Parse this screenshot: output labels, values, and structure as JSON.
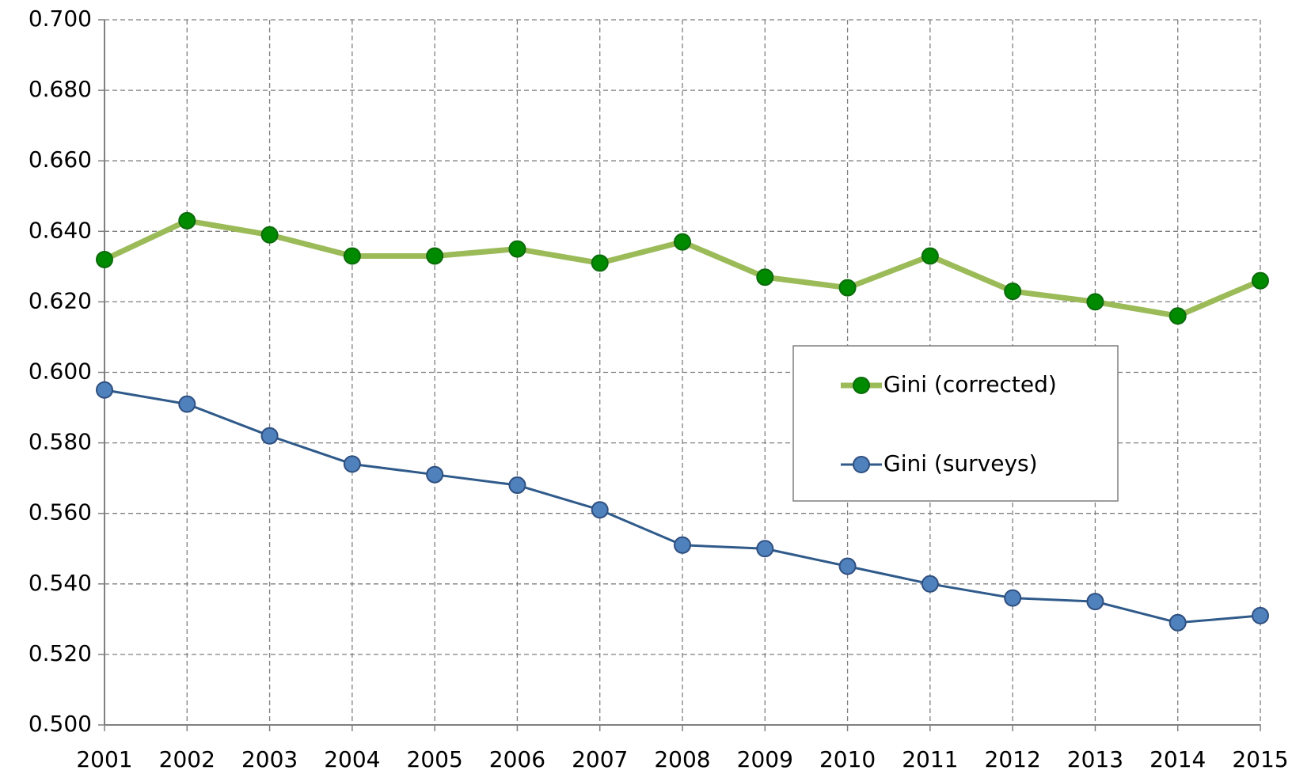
{
  "chart_data": {
    "type": "line",
    "x": [
      2001,
      2002,
      2003,
      2004,
      2005,
      2006,
      2007,
      2008,
      2009,
      2010,
      2011,
      2012,
      2013,
      2014,
      2015
    ],
    "xlim": [
      2001,
      2015
    ],
    "xticks": [
      2001,
      2002,
      2003,
      2004,
      2005,
      2006,
      2007,
      2008,
      2009,
      2010,
      2011,
      2012,
      2013,
      2014,
      2015
    ],
    "ylim": [
      0.5,
      0.7
    ],
    "yticks": [
      {
        "value": 0.5,
        "label": "0.500"
      },
      {
        "value": 0.52,
        "label": "0.520"
      },
      {
        "value": 0.54,
        "label": "0.540"
      },
      {
        "value": 0.56,
        "label": "0.560"
      },
      {
        "value": 0.58,
        "label": "0.580"
      },
      {
        "value": 0.6,
        "label": "0.600"
      },
      {
        "value": 0.62,
        "label": "0.620"
      },
      {
        "value": 0.64,
        "label": "0.640"
      },
      {
        "value": 0.66,
        "label": "0.660"
      },
      {
        "value": 0.68,
        "label": "0.680"
      },
      {
        "value": 0.7,
        "label": "0.700"
      }
    ],
    "grid": true,
    "legend": "right",
    "series": [
      {
        "name": "Gini (corrected)",
        "color": "#9bbb59",
        "marker_color": "#008a00",
        "line_width": 7,
        "values": [
          0.632,
          0.643,
          0.639,
          0.633,
          0.633,
          0.635,
          0.631,
          0.637,
          0.627,
          0.624,
          0.633,
          0.623,
          0.62,
          0.616,
          0.626
        ]
      },
      {
        "name": "Gini (surveys)",
        "color": "#2f5a8a",
        "marker_color": "#4f81bd",
        "line_width": 3,
        "values": [
          0.595,
          0.591,
          0.582,
          0.574,
          0.571,
          0.568,
          0.561,
          0.551,
          0.55,
          0.545,
          0.54,
          0.536,
          0.535,
          0.529,
          0.531
        ]
      }
    ]
  }
}
